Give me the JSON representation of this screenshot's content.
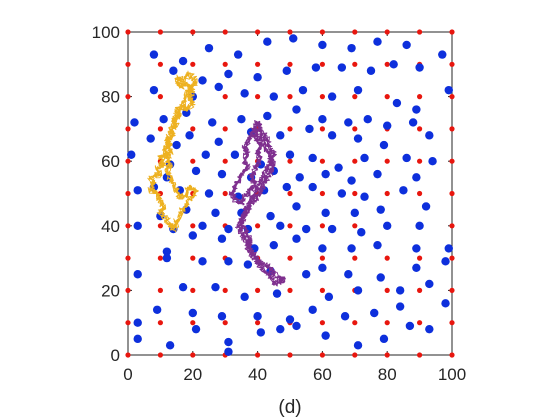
{
  "chart_data": {
    "type": "scatter",
    "caption": "(d)",
    "xlim": [
      0,
      100
    ],
    "ylim": [
      0,
      100
    ],
    "x_ticks": [
      "0",
      "20",
      "40",
      "60",
      "80",
      "100"
    ],
    "y_ticks": [
      "0",
      "20",
      "40",
      "60",
      "80",
      "100"
    ],
    "grid": false,
    "colors": {
      "red": "#e8160e",
      "blue": "#0d2fdc",
      "yellow_path": "#edb120",
      "purple_path": "#7e2f8e",
      "axis": "#262626"
    },
    "series": [
      {
        "color": "red",
        "grid_lattice": {
          "x_start": 0,
          "x_end": 100,
          "x_step": 10,
          "y_start": 0,
          "y_end": 100,
          "y_step": 10
        }
      },
      {
        "color": "blue",
        "points": [
          [
            8,
            93
          ],
          [
            17,
            91
          ],
          [
            25,
            95
          ],
          [
            34,
            93
          ],
          [
            43,
            97
          ],
          [
            51,
            98
          ],
          [
            60,
            96
          ],
          [
            69,
            95
          ],
          [
            77,
            97
          ],
          [
            86,
            96
          ],
          [
            97,
            93
          ],
          [
            14,
            88
          ],
          [
            23,
            85
          ],
          [
            31,
            87
          ],
          [
            40,
            86
          ],
          [
            49,
            88
          ],
          [
            58,
            89
          ],
          [
            66,
            89
          ],
          [
            75,
            88
          ],
          [
            82,
            90
          ],
          [
            90,
            89
          ],
          [
            8,
            82
          ],
          [
            20,
            80
          ],
          [
            28,
            83
          ],
          [
            36,
            81
          ],
          [
            45,
            80
          ],
          [
            54,
            82
          ],
          [
            63,
            80
          ],
          [
            71,
            82
          ],
          [
            83,
            78
          ],
          [
            89,
            76
          ],
          [
            99,
            82
          ],
          [
            2,
            72
          ],
          [
            11,
            73
          ],
          [
            18,
            75
          ],
          [
            26,
            72
          ],
          [
            35,
            73
          ],
          [
            43,
            74
          ],
          [
            52,
            76
          ],
          [
            60,
            73
          ],
          [
            68,
            72
          ],
          [
            74,
            73
          ],
          [
            80,
            71
          ],
          [
            88,
            72
          ],
          [
            7,
            67
          ],
          [
            15,
            65
          ],
          [
            19,
            68
          ],
          [
            28,
            66
          ],
          [
            38,
            69
          ],
          [
            47,
            68
          ],
          [
            56,
            70
          ],
          [
            63,
            68
          ],
          [
            71,
            67
          ],
          [
            79,
            65
          ],
          [
            93,
            68
          ],
          [
            1,
            62
          ],
          [
            13,
            59
          ],
          [
            24,
            62
          ],
          [
            33,
            62
          ],
          [
            41,
            59
          ],
          [
            50,
            62
          ],
          [
            57,
            61
          ],
          [
            65,
            58
          ],
          [
            73,
            61
          ],
          [
            86,
            61
          ],
          [
            94,
            60
          ],
          [
            12,
            55
          ],
          [
            21,
            57
          ],
          [
            29,
            56
          ],
          [
            38,
            55
          ],
          [
            45,
            57
          ],
          [
            53,
            55
          ],
          [
            61,
            56
          ],
          [
            69,
            54
          ],
          [
            77,
            56
          ],
          [
            89,
            55
          ],
          [
            3,
            51
          ],
          [
            8,
            52
          ],
          [
            16,
            51
          ],
          [
            25,
            50
          ],
          [
            34,
            49
          ],
          [
            42,
            51
          ],
          [
            49,
            52
          ],
          [
            57,
            52
          ],
          [
            66,
            50
          ],
          [
            73,
            49
          ],
          [
            85,
            51
          ],
          [
            10,
            43
          ],
          [
            18,
            45
          ],
          [
            27,
            44
          ],
          [
            35,
            44
          ],
          [
            44,
            43
          ],
          [
            52,
            46
          ],
          [
            61,
            44
          ],
          [
            70,
            44
          ],
          [
            78,
            45
          ],
          [
            92,
            46
          ],
          [
            3,
            40
          ],
          [
            14,
            39
          ],
          [
            23,
            40
          ],
          [
            31,
            39
          ],
          [
            37,
            39
          ],
          [
            47,
            40
          ],
          [
            55,
            39
          ],
          [
            63,
            39
          ],
          [
            72,
            38
          ],
          [
            80,
            40
          ],
          [
            90,
            40
          ],
          [
            12,
            32
          ],
          [
            20,
            37
          ],
          [
            29,
            36
          ],
          [
            39,
            33
          ],
          [
            45,
            34
          ],
          [
            52,
            36
          ],
          [
            60,
            33
          ],
          [
            69,
            33
          ],
          [
            77,
            34
          ],
          [
            89,
            33
          ],
          [
            99,
            33
          ],
          [
            3,
            25
          ],
          [
            12,
            30
          ],
          [
            23,
            29
          ],
          [
            31,
            29
          ],
          [
            37,
            28
          ],
          [
            44,
            26
          ],
          [
            55,
            25
          ],
          [
            60,
            27
          ],
          [
            68,
            25
          ],
          [
            78,
            24
          ],
          [
            89,
            27
          ],
          [
            98,
            29
          ],
          [
            17,
            21
          ],
          [
            27,
            21
          ],
          [
            36,
            18
          ],
          [
            46,
            19
          ],
          [
            62,
            18
          ],
          [
            71,
            20
          ],
          [
            84,
            20
          ],
          [
            93,
            22
          ],
          [
            9,
            14
          ],
          [
            20,
            13
          ],
          [
            29,
            12
          ],
          [
            40,
            12
          ],
          [
            50,
            11
          ],
          [
            57,
            14
          ],
          [
            67,
            12
          ],
          [
            76,
            13
          ],
          [
            84,
            15
          ],
          [
            98,
            16
          ],
          [
            3,
            5
          ],
          [
            13,
            3
          ],
          [
            21,
            8
          ],
          [
            31,
            4
          ],
          [
            41,
            7
          ],
          [
            52,
            9
          ],
          [
            61,
            6
          ],
          [
            71,
            3
          ],
          [
            79,
            5
          ],
          [
            87,
            9
          ],
          [
            93,
            8
          ],
          [
            3,
            10
          ],
          [
            31,
            1
          ],
          [
            47,
            8
          ]
        ]
      },
      {
        "color": "yellow_path",
        "path": [
          [
            19,
            87
          ],
          [
            17,
            85
          ],
          [
            15,
            86
          ],
          [
            16,
            83
          ],
          [
            18,
            84
          ],
          [
            20,
            82
          ],
          [
            19,
            80
          ],
          [
            20,
            78
          ],
          [
            18,
            76
          ],
          [
            17,
            77
          ],
          [
            15,
            76
          ],
          [
            16,
            74
          ],
          [
            14,
            73
          ],
          [
            15,
            71
          ],
          [
            13,
            70
          ],
          [
            14,
            68
          ],
          [
            12,
            67
          ],
          [
            13,
            65
          ],
          [
            11,
            64
          ],
          [
            12,
            62
          ],
          [
            10,
            61
          ],
          [
            11,
            59
          ],
          [
            9,
            58
          ],
          [
            10,
            56
          ],
          [
            7,
            55
          ],
          [
            8,
            53
          ],
          [
            7,
            51
          ],
          [
            9,
            50
          ],
          [
            10,
            48
          ],
          [
            11,
            46
          ],
          [
            10,
            44
          ],
          [
            12,
            42
          ],
          [
            13,
            40
          ],
          [
            14,
            39
          ],
          [
            15,
            41
          ],
          [
            16,
            43
          ],
          [
            17,
            45
          ],
          [
            18,
            47
          ],
          [
            20,
            49
          ],
          [
            21,
            51
          ],
          [
            19,
            52
          ],
          [
            18,
            50
          ],
          [
            16,
            49
          ],
          [
            15,
            51
          ],
          [
            14,
            53
          ],
          [
            13,
            55
          ],
          [
            12,
            57
          ],
          [
            13,
            59
          ],
          [
            12,
            61
          ],
          [
            13,
            63
          ],
          [
            12,
            66
          ],
          [
            14,
            70
          ],
          [
            15,
            74
          ],
          [
            17,
            78
          ],
          [
            18,
            81
          ],
          [
            20,
            83
          ],
          [
            21,
            85
          ],
          [
            19,
            87
          ]
        ]
      },
      {
        "color": "purple_path",
        "path": [
          [
            37,
            63
          ],
          [
            36,
            60
          ],
          [
            37,
            58
          ],
          [
            35,
            56
          ],
          [
            34,
            54
          ],
          [
            33,
            52
          ],
          [
            32,
            50
          ],
          [
            33,
            48
          ],
          [
            35,
            47
          ],
          [
            36,
            49
          ],
          [
            38,
            51
          ],
          [
            39,
            53
          ],
          [
            38,
            55
          ],
          [
            39,
            57
          ],
          [
            40,
            59
          ],
          [
            41,
            61
          ],
          [
            40,
            63
          ],
          [
            41,
            65
          ],
          [
            40,
            67
          ],
          [
            39,
            68
          ],
          [
            40,
            70
          ],
          [
            41,
            67
          ],
          [
            42,
            65
          ],
          [
            43,
            63
          ],
          [
            44,
            61
          ],
          [
            45,
            59
          ],
          [
            44,
            57
          ],
          [
            43,
            55
          ],
          [
            42,
            53
          ],
          [
            41,
            51
          ],
          [
            40,
            49
          ],
          [
            38,
            47
          ],
          [
            37,
            45
          ],
          [
            36,
            43
          ],
          [
            35,
            41
          ],
          [
            36,
            39
          ],
          [
            37,
            37
          ],
          [
            38,
            35
          ],
          [
            37,
            33
          ],
          [
            39,
            31
          ],
          [
            40,
            29
          ],
          [
            42,
            28
          ],
          [
            44,
            27
          ],
          [
            45,
            25
          ],
          [
            47,
            24
          ],
          [
            48,
            23
          ],
          [
            46,
            22
          ],
          [
            44,
            24
          ],
          [
            42,
            26
          ],
          [
            40,
            28
          ],
          [
            39,
            30
          ],
          [
            38,
            32
          ],
          [
            37,
            34
          ],
          [
            36,
            36
          ],
          [
            35,
            38
          ],
          [
            34,
            40
          ],
          [
            35,
            42
          ],
          [
            36,
            44
          ],
          [
            37,
            46
          ],
          [
            38,
            48
          ],
          [
            39,
            50
          ],
          [
            40,
            52
          ],
          [
            41,
            54
          ],
          [
            42,
            56
          ],
          [
            43,
            58
          ],
          [
            44,
            60
          ],
          [
            45,
            62
          ],
          [
            44,
            64
          ],
          [
            43,
            66
          ],
          [
            42,
            68
          ],
          [
            41,
            70
          ],
          [
            40,
            72
          ],
          [
            39,
            70
          ],
          [
            38,
            68
          ],
          [
            37,
            66
          ],
          [
            36,
            64
          ],
          [
            37,
            63
          ]
        ]
      }
    ]
  }
}
